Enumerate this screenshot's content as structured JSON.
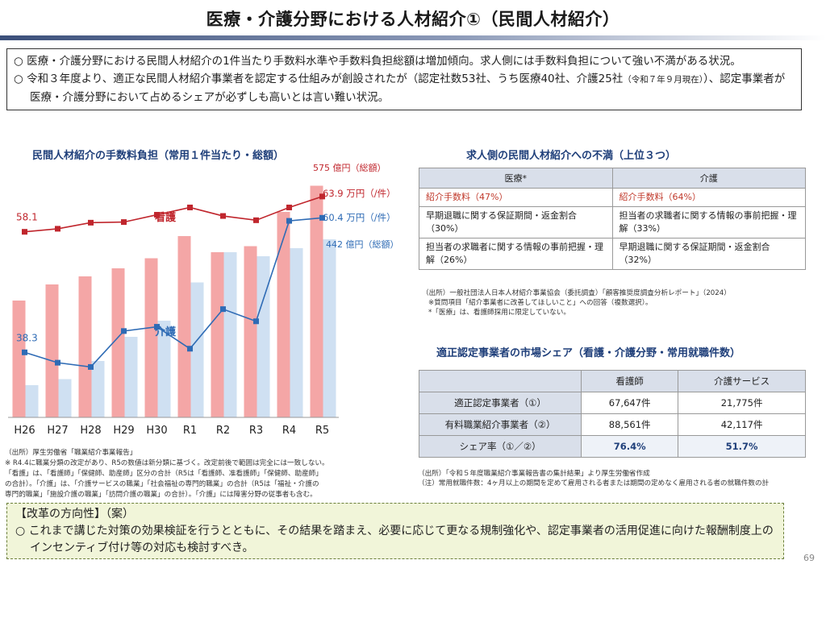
{
  "title": "医療・介護分野における人材紹介①（民間人材紹介）",
  "summary": {
    "bullet1": "○ 医療・介護分野における民間人材紹介の1件当たり手数料水準や手数料負担総額は増加傾向。求人側には手数料負担について強い不満がある状況。",
    "bullet2_main": "○ 令和３年度より、適正な民間人材紹介事業者を認定する仕組みが創設されたが（認定社数53社、うち医療40社、介護25社",
    "bullet2_note": "（令和７年９月現在）",
    "bullet2_tail": "）、認定事業者が医療・介護分野において占めるシェアが必ずしも高いとは言い難い状況。"
  },
  "chart_data": {
    "type": "bar+line",
    "title": "民間人材紹介の手数料負担（常用１件当たり・総額）",
    "categories": [
      "H26",
      "H27",
      "H28",
      "H29",
      "H30",
      "R1",
      "R2",
      "R3",
      "R4",
      "R5"
    ],
    "series": [
      {
        "name": "看護 総額（億円）",
        "kind": "bar",
        "color": "#f4a6a6",
        "values": [
          290,
          330,
          350,
          370,
          395,
          450,
          410,
          425,
          510,
          575
        ]
      },
      {
        "name": "介護 総額（億円）",
        "kind": "bar",
        "color": "#cfe0f2",
        "values": [
          80,
          95,
          140,
          200,
          240,
          335,
          410,
          400,
          420,
          442
        ]
      },
      {
        "name": "看護 1件当たり（万円/件）",
        "kind": "line",
        "color": "#c0262d",
        "values": [
          58.1,
          58.6,
          59.6,
          59.7,
          60.9,
          62.1,
          60.7,
          60.0,
          62.1,
          63.9
        ]
      },
      {
        "name": "介護 1件当たり（万円/件）",
        "kind": "line",
        "color": "#2e6bb5",
        "values": [
          38.3,
          36.6,
          35.9,
          41.8,
          42.5,
          38.9,
          45.4,
          43.4,
          59.9,
          60.4
        ]
      }
    ],
    "labels": {
      "nurse_start": "58.1",
      "care_start": "38.3",
      "nurse_line_name": "看護",
      "care_line_name": "介護",
      "nurse_total": "575 億円（総額）",
      "nurse_unit": "63.9 万円（/件）",
      "care_unit": "60.4 万円（/件）",
      "care_total": "442 億円（総額）"
    }
  },
  "left_source": [
    "（出所）厚生労働省「職業紹介事業報告」",
    "※ R4.4に職業分類の改定があり、R5の数値は新分類に基づく。改定前後で範囲は完全には一致しない。",
    "「看護」は、「看護師」「保健師、助産師」区分の合計（R5は「看護師、准看護師」「保健師、助産師」",
    "の合計）。「介護」は、「介護サービスの職業」「社会福祉の専門的職業」の合計（R5は「福祉・介護の",
    "専門的職業」「施設介護の職業」「訪問介護の職業」の合計）。「介護」には障害分野の従事者も含む。"
  ],
  "complaints": {
    "title": "求人側の民間人材紹介への不満（上位３つ）",
    "headers": [
      "医療*",
      "介護"
    ],
    "rows": [
      [
        "紹介手数料（47%）",
        "紹介手数料（64%）"
      ],
      [
        "早期退職に関する保証期間・返金割合（30%）",
        "担当者の求職者に関する情報の事前把握・理解（33%）"
      ],
      [
        "担当者の求職者に関する情報の事前把握・理解（26%）",
        "早期退職に関する保証期間・返金割合（32%）"
      ]
    ],
    "source": [
      "（出所）一般社団法人日本人材紹介事業協会（委託調査）「顧客推奨度調査分析レポート」（2024）",
      "※質問項目「紹介事業者に改善してほしいこと」への回答（複数選択）。",
      "*「医療」は、看護師採用に限定していない。"
    ]
  },
  "share": {
    "title": "適正認定事業者の市場シェア（看護・介護分野・常用就職件数）",
    "headers": [
      "",
      "看護師",
      "介護サービス"
    ],
    "rows": [
      [
        "適正認定事業者（①）",
        "67,647件",
        "21,775件"
      ],
      [
        "有料職業紹介事業者（②）",
        "88,561件",
        "42,117件"
      ],
      [
        "シェア率（①／②）",
        "76.4%",
        "51.7%"
      ]
    ],
    "source": [
      "（出所）「令和５年度職業紹介事業報告書の集計結果」より厚生労働省作成",
      "（注）常用就職件数：4ヶ月以上の期間を定めて雇用される者または期間の定めなく雇用される者の就職件数の計"
    ]
  },
  "reform": {
    "heading": "【改革の方向性】（案）",
    "body": "○ これまで講じた対策の効果検証を行うとともに、その結果を踏まえ、必要に応じて更なる規制強化や、認定事業者の活用促進に向けた報酬制度上のインセンティブ付け等の対応も検討すべき。"
  },
  "page_number": "69"
}
